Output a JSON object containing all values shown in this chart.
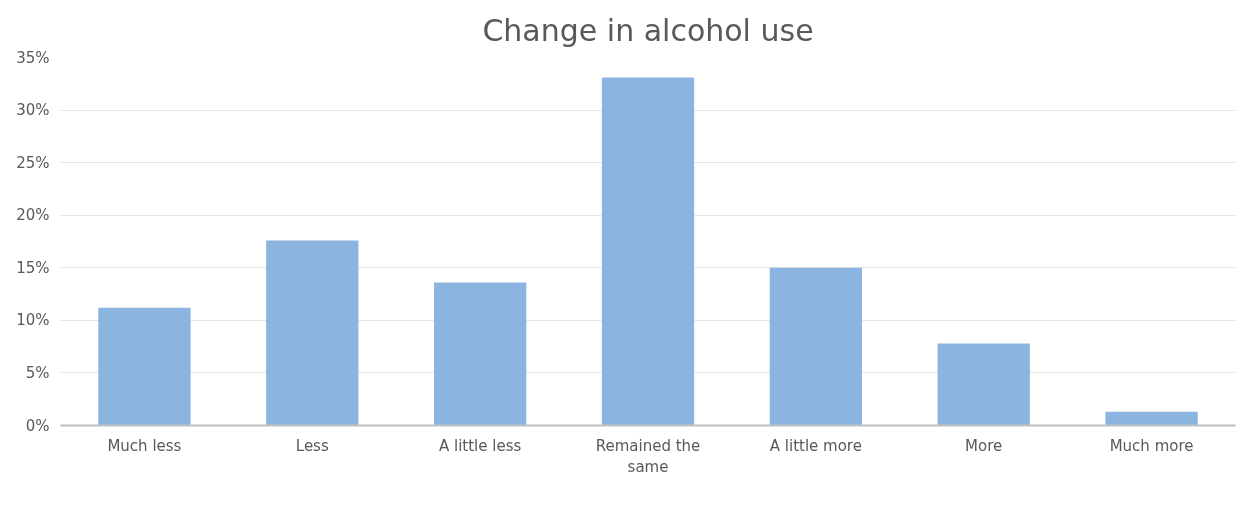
{
  "chart_data": {
    "type": "bar",
    "title": "Change in alcohol use",
    "categories": [
      "Much less",
      "Less",
      "A little less",
      "Remained the same",
      "A little more",
      "More",
      "Much more"
    ],
    "values": [
      11.2,
      17.6,
      13.6,
      33.1,
      15.0,
      7.8,
      1.3
    ],
    "color": "#8cb4e0",
    "ylim": [
      0,
      35
    ],
    "yticks": [
      {
        "value": 0,
        "label": "0%"
      },
      {
        "value": 5,
        "label": "5%"
      },
      {
        "value": 10,
        "label": "10%"
      },
      {
        "value": 15,
        "label": "15%"
      },
      {
        "value": 20,
        "label": "20%"
      },
      {
        "value": 25,
        "label": "25%"
      },
      {
        "value": 30,
        "label": "30%"
      },
      {
        "value": 35,
        "label": "35%"
      }
    ],
    "grid": "y"
  }
}
